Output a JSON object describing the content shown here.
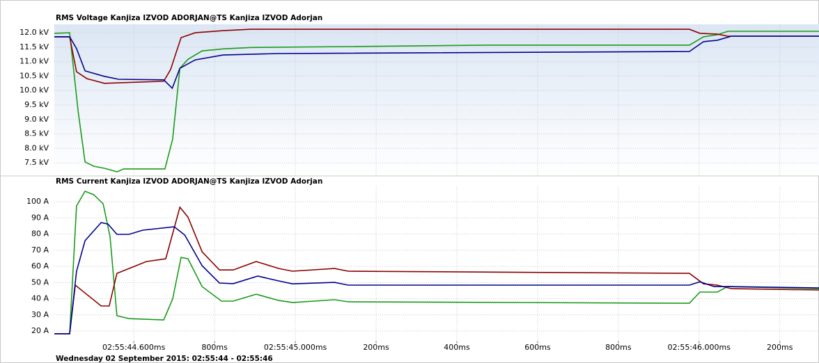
{
  "chart_data": [
    {
      "type": "line",
      "title": "RMS Voltage Kanjiza IZVOD ADORJAN@TS Kanjiza IZVOD Adorjan",
      "xlim": [
        44.403,
        46.297
      ],
      "ylim": [
        7.07,
        12.29
      ],
      "grid": true,
      "yticks": [
        {
          "value": 12.0,
          "label": "12.0 kV"
        },
        {
          "value": 11.5,
          "label": "11.5 kV"
        },
        {
          "value": 11.0,
          "label": "11.0 kV"
        },
        {
          "value": 10.5,
          "label": "10.5 kV"
        },
        {
          "value": 10.0,
          "label": "10.0 kV"
        },
        {
          "value": 9.5,
          "label": "9.5 kV"
        },
        {
          "value": 9.0,
          "label": "9.0 kV"
        },
        {
          "value": 8.5,
          "label": "8.5 kV"
        },
        {
          "value": 8.0,
          "label": "8.0 kV"
        },
        {
          "value": 7.5,
          "label": "7.5 kV"
        }
      ],
      "xgrid": [
        44.6,
        44.8,
        45.0,
        45.2,
        45.4,
        45.6,
        45.8,
        46.0,
        46.2
      ],
      "series": [
        {
          "color": "#1a9a1a",
          "x": [
            44.403,
            44.441,
            44.462,
            44.479,
            44.501,
            44.527,
            44.558,
            44.575,
            44.613,
            44.677,
            44.696,
            44.714,
            44.734,
            44.769,
            44.821,
            44.89,
            45.131,
            45.476,
            45.976,
            46.011,
            46.045,
            46.071,
            46.297
          ],
          "values": [
            11.98,
            12.0,
            9.28,
            7.53,
            7.38,
            7.31,
            7.19,
            7.29,
            7.29,
            7.29,
            8.32,
            10.77,
            11.08,
            11.37,
            11.44,
            11.49,
            11.52,
            11.57,
            11.57,
            11.86,
            11.93,
            12.05,
            12.05
          ]
        },
        {
          "color": "#8b0000",
          "x": [
            44.403,
            44.441,
            44.458,
            44.484,
            44.527,
            44.613,
            44.674,
            44.691,
            44.717,
            44.752,
            44.821,
            44.89,
            45.976,
            46.002,
            46.045,
            46.071,
            46.297
          ],
          "values": [
            11.86,
            11.86,
            10.65,
            10.41,
            10.25,
            10.29,
            10.32,
            10.73,
            11.83,
            12.0,
            12.07,
            12.12,
            12.12,
            11.98,
            11.95,
            11.88,
            11.88
          ]
        },
        {
          "color": "#00008b",
          "x": [
            44.403,
            44.441,
            44.458,
            44.479,
            44.527,
            44.562,
            44.674,
            44.695,
            44.714,
            44.752,
            44.821,
            44.959,
            45.976,
            46.011,
            46.045,
            46.08,
            46.297
          ],
          "values": [
            11.86,
            11.86,
            11.45,
            10.68,
            10.49,
            10.39,
            10.37,
            10.08,
            10.77,
            11.06,
            11.23,
            11.28,
            11.35,
            11.69,
            11.74,
            11.88,
            11.88
          ]
        }
      ]
    },
    {
      "type": "line",
      "title": "RMS Current Kanjiza IZVOD ADORJAN@TS Kanjiza IZVOD Adorjan",
      "xlim": [
        44.403,
        46.297
      ],
      "ylim": [
        14,
        109.5
      ],
      "grid": true,
      "yticks": [
        {
          "value": 100,
          "label": "100 A"
        },
        {
          "value": 90,
          "label": "90 A"
        },
        {
          "value": 80,
          "label": "80 A"
        },
        {
          "value": 70,
          "label": "70 A"
        },
        {
          "value": 60,
          "label": "60 A"
        },
        {
          "value": 50,
          "label": "50 A"
        },
        {
          "value": 40,
          "label": "40 A"
        },
        {
          "value": 30,
          "label": "30 A"
        },
        {
          "value": 20,
          "label": "20 A"
        }
      ],
      "xticks": [
        {
          "value": 44.6,
          "label": "02:55:44.600ms"
        },
        {
          "value": 44.8,
          "label": "800ms"
        },
        {
          "value": 45.0,
          "label": "02:55:45.000ms"
        },
        {
          "value": 45.2,
          "label": "200ms"
        },
        {
          "value": 45.4,
          "label": "400ms"
        },
        {
          "value": 45.6,
          "label": "600ms"
        },
        {
          "value": 45.8,
          "label": "800ms"
        },
        {
          "value": 46.0,
          "label": "02:55:46.000ms"
        },
        {
          "value": 46.2,
          "label": "200ms"
        }
      ],
      "xlabel": "Wednesday 02 September 2015: 02:55:44 - 02:55:46",
      "series": [
        {
          "color": "#1a9a1a",
          "x": [
            44.403,
            44.441,
            44.458,
            44.479,
            44.501,
            44.524,
            44.541,
            44.558,
            44.588,
            44.674,
            44.696,
            44.717,
            44.734,
            44.769,
            44.817,
            44.846,
            44.903,
            44.959,
            44.993,
            45.097,
            45.131,
            45.976,
            46.002,
            46.045,
            46.071,
            46.297
          ],
          "values": [
            18.3,
            18.3,
            97.4,
            106.5,
            104.3,
            98.7,
            78.5,
            29.5,
            27.7,
            26.9,
            39.8,
            65.6,
            64.7,
            47.5,
            38.5,
            38.5,
            42.8,
            38.9,
            37.6,
            39.4,
            38.1,
            37.2,
            44.1,
            44.1,
            47.5,
            46.2
          ]
        },
        {
          "color": "#8b0000",
          "x": [
            44.403,
            44.441,
            44.455,
            44.519,
            44.539,
            44.558,
            44.631,
            44.679,
            44.714,
            44.734,
            44.769,
            44.812,
            44.846,
            44.903,
            44.959,
            44.993,
            45.097,
            45.131,
            45.976,
            46.011,
            46.045,
            46.08,
            46.297
          ],
          "values": [
            18.3,
            18.3,
            48.4,
            35.5,
            35.5,
            55.7,
            63.0,
            64.7,
            96.6,
            90.5,
            69.0,
            57.8,
            57.8,
            63.0,
            58.7,
            57.0,
            58.7,
            57.0,
            55.7,
            49.2,
            48.4,
            46.2,
            45.4
          ]
        },
        {
          "color": "#00008b",
          "x": [
            44.403,
            44.441,
            44.458,
            44.479,
            44.519,
            44.536,
            44.558,
            44.588,
            44.622,
            44.7,
            44.726,
            44.769,
            44.812,
            44.846,
            44.907,
            44.959,
            44.993,
            45.097,
            45.131,
            45.976,
            46.002,
            46.037,
            46.071,
            46.297
          ],
          "values": [
            18.3,
            18.3,
            57.0,
            75.9,
            87.1,
            86.2,
            79.8,
            79.8,
            82.4,
            84.5,
            79.4,
            60.4,
            49.7,
            49.3,
            54.0,
            51.0,
            49.2,
            50.1,
            48.4,
            48.4,
            50.5,
            47.5,
            47.5,
            46.7
          ]
        }
      ]
    }
  ]
}
